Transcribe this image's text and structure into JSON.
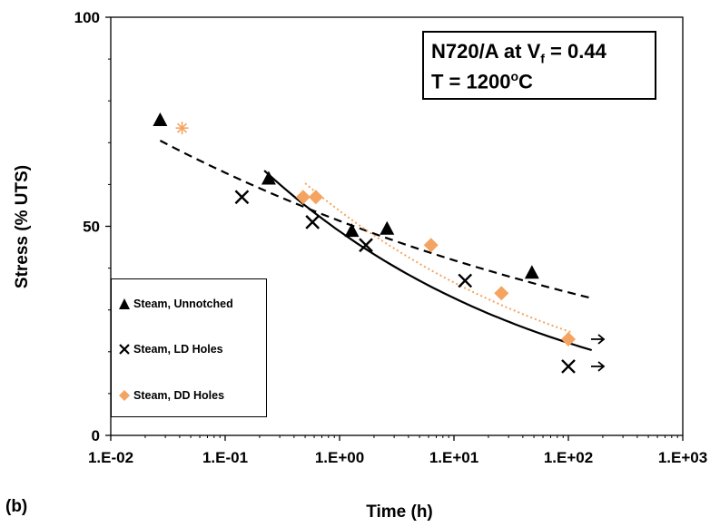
{
  "panel_label": "(b)",
  "annotation": {
    "line1_prefix": "N720/A at V",
    "line1_sub": "f",
    "line1_suffix": " = 0.44",
    "line2_prefix": "T = 1200",
    "line2_sup": "o",
    "line2_suffix": "C"
  },
  "chart_data": {
    "type": "scatter",
    "xlabel": "Time (h)",
    "ylabel": "Stress (% UTS)",
    "x_scale": "log",
    "xlim": [
      0.01,
      1000
    ],
    "ylim": [
      0,
      100
    ],
    "x_ticks": [
      "1.E-02",
      "1.E-01",
      "1.E+00",
      "1.E+01",
      "1.E+02",
      "1.E+03"
    ],
    "y_ticks": [
      "0",
      "50",
      "100"
    ],
    "grid": false,
    "legend_position": "bottom-left",
    "colors": {
      "unnotched": "#000000",
      "ld": "#000000",
      "dd": "#f4a460"
    },
    "series": [
      {
        "name": "Steam, Unnotched",
        "marker": "triangle",
        "color": "#000000",
        "points": [
          [
            0.027,
            75.5
          ],
          [
            0.24,
            61.5
          ],
          [
            1.28,
            49
          ],
          [
            2.6,
            49.5
          ],
          [
            48,
            39
          ]
        ],
        "fit": {
          "style": "dashed",
          "x": [
            0.027,
            160
          ],
          "a": 51.3,
          "b": -0.088
        }
      },
      {
        "name": "Steam, LD Holes",
        "marker": "x",
        "color": "#000000",
        "points": [
          [
            0.14,
            57
          ],
          [
            0.58,
            51
          ],
          [
            1.7,
            45.5
          ],
          [
            12.5,
            37
          ],
          [
            100,
            16.5
          ]
        ],
        "fit": {
          "style": "solid",
          "x": [
            0.22,
            160
          ],
          "a": 48.8,
          "b": -0.172
        },
        "runouts": [
          100
        ]
      },
      {
        "name": "Steam, DD Holes",
        "marker": "diamond",
        "color": "#f4a460",
        "points": [
          [
            0.042,
            73.5
          ],
          [
            0.48,
            57
          ],
          [
            0.62,
            57
          ],
          [
            6.3,
            45.5
          ],
          [
            26,
            34
          ],
          [
            100,
            23
          ]
        ],
        "fit": {
          "style": "dotted",
          "x": [
            0.5,
            110
          ],
          "a": 53.7,
          "b": -0.167
        },
        "runouts": [
          100
        ]
      }
    ]
  }
}
